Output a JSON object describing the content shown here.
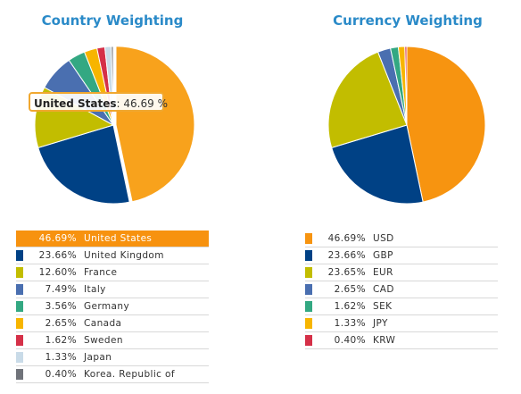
{
  "chart_data": [
    {
      "type": "pie",
      "title": "Country Weighting",
      "series": [
        {
          "label": "United States",
          "value": 46.69,
          "display": "46.69%",
          "color": "#f8a21c"
        },
        {
          "label": "United Kingdom",
          "value": 23.66,
          "display": "23.66%",
          "color": "#004185"
        },
        {
          "label": "France",
          "value": 12.6,
          "display": "12.60%",
          "color": "#c2bd00"
        },
        {
          "label": "Italy",
          "value": 7.49,
          "display": "7.49%",
          "color": "#4a6fb0"
        },
        {
          "label": "Germany",
          "value": 3.56,
          "display": "3.56%",
          "color": "#33a882"
        },
        {
          "label": "Canada",
          "value": 2.65,
          "display": "2.65%",
          "color": "#f7b500"
        },
        {
          "label": "Sweden",
          "value": 1.62,
          "display": "1.62%",
          "color": "#d53048"
        },
        {
          "label": "Japan",
          "value": 1.33,
          "display": "1.33%",
          "color": "#c9dbe8"
        },
        {
          "label": "Korea. Republic of",
          "value": 0.4,
          "display": "0.40%",
          "color": "#70737a"
        }
      ],
      "highlighted": "United States",
      "tooltip": {
        "label": "United States",
        "value": "46.69 %"
      }
    },
    {
      "type": "pie",
      "title": "Currency Weighting",
      "series": [
        {
          "label": "USD",
          "value": 46.69,
          "display": "46.69%",
          "color": "#f79410"
        },
        {
          "label": "GBP",
          "value": 23.66,
          "display": "23.66%",
          "color": "#004185"
        },
        {
          "label": "EUR",
          "value": 23.65,
          "display": "23.65%",
          "color": "#c2bd00"
        },
        {
          "label": "CAD",
          "value": 2.65,
          "display": "2.65%",
          "color": "#4a6fb0"
        },
        {
          "label": "SEK",
          "value": 1.62,
          "display": "1.62%",
          "color": "#33a882"
        },
        {
          "label": "JPY",
          "value": 1.33,
          "display": "1.33%",
          "color": "#f7b500"
        },
        {
          "label": "KRW",
          "value": 0.4,
          "display": "0.40%",
          "color": "#d53048"
        }
      ]
    }
  ]
}
